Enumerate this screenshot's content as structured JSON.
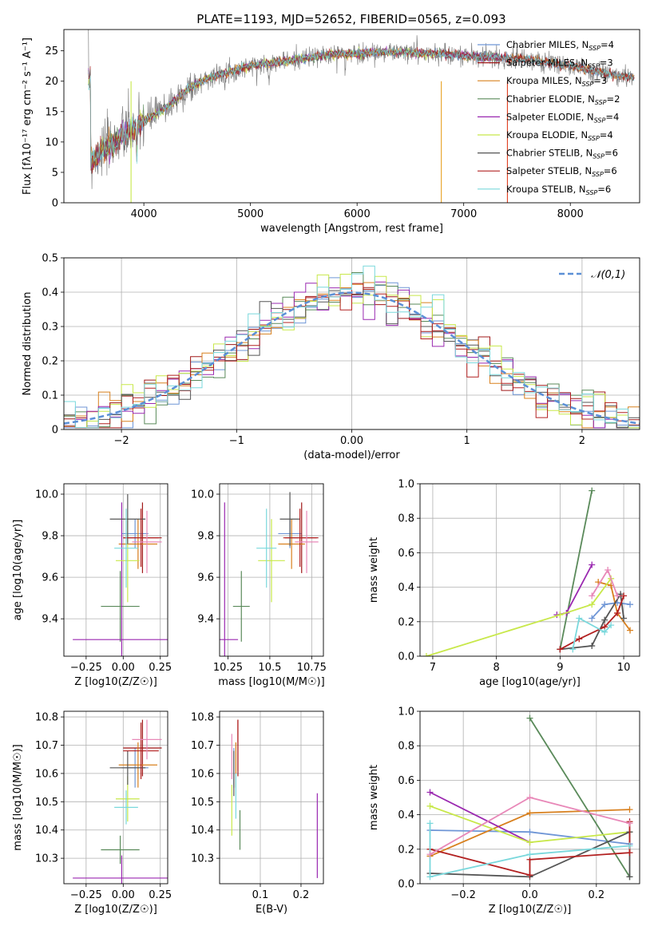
{
  "title": "PLATE=1193, MJD=52652, FIBERID=0565, z=0.093",
  "colors": {
    "grid": "#b0b0b0",
    "normal_curve": "#5b8fd6",
    "series": [
      "#6f96d6",
      "#a01818",
      "#d8801e",
      "#5a8a5a",
      "#9a28b0",
      "#c8e84a",
      "#555555",
      "#b22020",
      "#7ad8dc"
    ],
    "extra": [
      "#e888b8",
      "#e04020",
      "#e8a020"
    ]
  },
  "legend": [
    {
      "label": "Chabrier MILES, N",
      "sub": "SSP",
      "suffix": "=4"
    },
    {
      "label": "Salpeter MILES, N",
      "sub": "SSP",
      "suffix": "=3"
    },
    {
      "label": "Kroupa MILES, N",
      "sub": "SSP",
      "suffix": "=3"
    },
    {
      "label": "Chabrier ELODIE, N",
      "sub": "SSP",
      "suffix": "=2"
    },
    {
      "label": "Salpeter ELODIE, N",
      "sub": "SSP",
      "suffix": "=4"
    },
    {
      "label": "Kroupa ELODIE, N",
      "sub": "SSP",
      "suffix": "=4"
    },
    {
      "label": "Chabrier STELIB, N",
      "sub": "SSP",
      "suffix": "=6"
    },
    {
      "label": "Salpeter STELIB, N",
      "sub": "SSP",
      "suffix": "=6"
    },
    {
      "label": "Kroupa STELIB, N",
      "sub": "SSP",
      "suffix": "=6"
    }
  ],
  "chart_data": [
    {
      "id": "spectrum",
      "type": "line",
      "title": "PLATE=1193, MJD=52652, FIBERID=0565, z=0.093",
      "xlabel": "wavelength [Angstrom, rest frame]",
      "ylabel": "Flux [fλ10⁻¹⁷ erg cm⁻² s⁻¹ A⁻¹]",
      "xlim": [
        3250,
        8650
      ],
      "ylim": [
        0,
        28.5
      ],
      "xticks": [
        4000,
        5000,
        6000,
        7000,
        8000
      ],
      "yticks": [
        0,
        5,
        10,
        15,
        20,
        25
      ],
      "grid": false,
      "legend_position": "top-right",
      "continuum": {
        "x": [
          3500,
          3600,
          3700,
          3800,
          3900,
          4000,
          4100,
          4200,
          4300,
          4400,
          4500,
          4600,
          4800,
          5000,
          5200,
          5400,
          5600,
          5800,
          6000,
          6200,
          6400,
          6600,
          6800,
          7000,
          7200,
          7400,
          7600,
          7800,
          8000,
          8200,
          8400,
          8600
        ],
        "y": [
          6.5,
          8.5,
          9.5,
          11.0,
          12.0,
          13.5,
          14.5,
          15.5,
          17.0,
          18.5,
          19.5,
          20.5,
          21.5,
          22.5,
          23.0,
          23.5,
          24.0,
          24.5,
          24.5,
          24.8,
          24.8,
          24.6,
          24.5,
          24.2,
          24.0,
          23.8,
          23.6,
          23.0,
          22.5,
          21.8,
          21.0,
          20.5
        ]
      }
    },
    {
      "id": "residuals",
      "type": "histogram",
      "xlabel": "(data-model)/error",
      "ylabel": "Normed distribution",
      "xlim": [
        -2.5,
        2.5
      ],
      "ylim": [
        0,
        0.5
      ],
      "xticks": [
        -2,
        -1,
        0,
        1,
        2
      ],
      "yticks": [
        0.0,
        0.1,
        0.2,
        0.3,
        0.4,
        0.5
      ],
      "grid": true,
      "legend": "𝒩(0,1)",
      "legend_position": "top-right",
      "bin_width": 0.1,
      "bin_start": -2.5
    },
    {
      "id": "age_vs_Z",
      "type": "scatter",
      "xlabel": "Z [log10(Z/Z☉)]",
      "ylabel": "age  [log10(age/yr)]",
      "xlim": [
        -0.4,
        0.3
      ],
      "ylim": [
        9.22,
        10.05
      ],
      "xticks": [
        -0.25,
        0.0,
        0.25
      ],
      "yticks": [
        9.4,
        9.6,
        9.8,
        10.0
      ],
      "grid": true,
      "points": [
        {
          "x": 0.08,
          "y": 9.81,
          "xerr": 0.09,
          "yerr": 0.07,
          "color": "#6f96d6"
        },
        {
          "x": 0.13,
          "y": 9.79,
          "xerr": 0.13,
          "yerr": 0.17,
          "color": "#a01818"
        },
        {
          "x": 0.1,
          "y": 9.76,
          "xerr": 0.13,
          "yerr": 0.12,
          "color": "#d8801e"
        },
        {
          "x": -0.02,
          "y": 9.46,
          "xerr": 0.13,
          "yerr": 0.17,
          "color": "#5a8a5a"
        },
        {
          "x": -0.01,
          "y": 9.3,
          "xerr": 0.33,
          "yerr": 0.66,
          "color": "#9a28b0"
        },
        {
          "x": 0.03,
          "y": 9.68,
          "xerr": 0.08,
          "yerr": 0.2,
          "color": "#c8e84a"
        },
        {
          "x": 0.03,
          "y": 9.88,
          "xerr": 0.12,
          "yerr": 0.12,
          "color": "#555555"
        },
        {
          "x": 0.12,
          "y": 9.79,
          "xerr": 0.12,
          "yerr": 0.14,
          "color": "#b22020"
        },
        {
          "x": 0.02,
          "y": 9.74,
          "xerr": 0.08,
          "yerr": 0.19,
          "color": "#7ad8dc"
        },
        {
          "x": 0.16,
          "y": 9.77,
          "xerr": 0.1,
          "yerr": 0.15,
          "color": "#e888b8"
        }
      ]
    },
    {
      "id": "age_vs_mass",
      "type": "scatter",
      "xlabel": "mass [log10(M/M☉)]",
      "ylabel": "",
      "xlim": [
        10.2,
        10.82
      ],
      "ylim": [
        9.22,
        10.05
      ],
      "xticks": [
        10.25,
        10.5,
        10.75
      ],
      "yticks": [
        9.4,
        9.6,
        9.8,
        10.0
      ],
      "grid": true,
      "points": [
        {
          "x": 10.62,
          "y": 9.81,
          "xerr": 0.07,
          "yerr": 0.07,
          "color": "#6f96d6"
        },
        {
          "x": 10.69,
          "y": 9.79,
          "xerr": 0.1,
          "yerr": 0.17,
          "color": "#a01818"
        },
        {
          "x": 10.63,
          "y": 9.76,
          "xerr": 0.08,
          "yerr": 0.12,
          "color": "#d8801e"
        },
        {
          "x": 10.33,
          "y": 9.46,
          "xerr": 0.05,
          "yerr": 0.17,
          "color": "#5a8a5a"
        },
        {
          "x": 10.23,
          "y": 9.3,
          "xerr": 0.08,
          "yerr": 0.66,
          "color": "#9a28b0"
        },
        {
          "x": 10.51,
          "y": 9.68,
          "xerr": 0.08,
          "yerr": 0.2,
          "color": "#c8e84a"
        },
        {
          "x": 10.62,
          "y": 9.88,
          "xerr": 0.06,
          "yerr": 0.13,
          "color": "#555555"
        },
        {
          "x": 10.68,
          "y": 9.79,
          "xerr": 0.1,
          "yerr": 0.14,
          "color": "#b22020"
        },
        {
          "x": 10.48,
          "y": 9.74,
          "xerr": 0.06,
          "yerr": 0.19,
          "color": "#7ad8dc"
        },
        {
          "x": 10.72,
          "y": 9.77,
          "xerr": 0.07,
          "yerr": 0.15,
          "color": "#e888b8"
        }
      ]
    },
    {
      "id": "weight_vs_age",
      "type": "line",
      "xlabel": "age  [log10(age/yr)]",
      "ylabel": "mass weight",
      "xlim": [
        6.8,
        10.25
      ],
      "ylim": [
        0,
        1
      ],
      "xticks": [
        7,
        8,
        9,
        10
      ],
      "yticks": [
        0.0,
        0.2,
        0.4,
        0.6,
        0.8,
        1.0
      ],
      "grid": true,
      "series": [
        {
          "color": "#6f96d6",
          "x": [
            9.5,
            9.7,
            9.9,
            10.1
          ],
          "y": [
            0.22,
            0.3,
            0.31,
            0.3
          ]
        },
        {
          "color": "#d8801e",
          "x": [
            9.6,
            9.8,
            9.9,
            10.1
          ],
          "y": [
            0.43,
            0.41,
            0.25,
            0.15
          ]
        },
        {
          "color": "#5a8a5a",
          "x": [
            9.0,
            9.5
          ],
          "y": [
            0.04,
            0.96
          ]
        },
        {
          "color": "#9a28b0",
          "x": [
            8.95,
            9.1,
            9.5
          ],
          "y": [
            0.24,
            0.25,
            0.53
          ]
        },
        {
          "color": "#c8e84a",
          "x": [
            6.9,
            9.0,
            9.5,
            9.8
          ],
          "y": [
            0.0,
            0.24,
            0.3,
            0.45
          ]
        },
        {
          "color": "#555555",
          "x": [
            9.0,
            9.5,
            9.7,
            9.95,
            10.0
          ],
          "y": [
            0.04,
            0.06,
            0.21,
            0.36,
            0.22
          ]
        },
        {
          "color": "#b22020",
          "x": [
            9.0,
            9.3,
            9.7,
            9.9,
            10.0
          ],
          "y": [
            0.04,
            0.1,
            0.17,
            0.25,
            0.35
          ]
        },
        {
          "color": "#7ad8dc",
          "x": [
            9.2,
            9.3,
            9.7,
            9.8
          ],
          "y": [
            0.04,
            0.22,
            0.14,
            0.18
          ]
        },
        {
          "color": "#e888b8",
          "x": [
            9.5,
            9.75,
            9.9
          ],
          "y": [
            0.35,
            0.5,
            0.35
          ]
        }
      ]
    },
    {
      "id": "mass_vs_Z",
      "type": "scatter",
      "xlabel": "Z [log10(Z/Z☉)]",
      "ylabel": "mass [log10(M/M☉)]",
      "xlim": [
        -0.4,
        0.3
      ],
      "ylim": [
        10.21,
        10.82
      ],
      "xticks": [
        -0.25,
        0.0,
        0.25
      ],
      "yticks": [
        10.3,
        10.4,
        10.5,
        10.6,
        10.7,
        10.8
      ],
      "grid": true,
      "points": [
        {
          "x": 0.08,
          "y": 10.62,
          "xerr": 0.09,
          "yerr": 0.07,
          "color": "#6f96d6"
        },
        {
          "x": 0.13,
          "y": 10.69,
          "xerr": 0.13,
          "yerr": 0.1,
          "color": "#a01818"
        },
        {
          "x": 0.1,
          "y": 10.63,
          "xerr": 0.13,
          "yerr": 0.08,
          "color": "#d8801e"
        },
        {
          "x": -0.02,
          "y": 10.33,
          "xerr": 0.13,
          "yerr": 0.05,
          "color": "#5a8a5a"
        },
        {
          "x": -0.01,
          "y": 10.23,
          "xerr": 0.33,
          "yerr": 0.08,
          "color": "#9a28b0"
        },
        {
          "x": 0.03,
          "y": 10.51,
          "xerr": 0.08,
          "yerr": 0.08,
          "color": "#c8e84a"
        },
        {
          "x": 0.03,
          "y": 10.62,
          "xerr": 0.12,
          "yerr": 0.06,
          "color": "#555555"
        },
        {
          "x": 0.12,
          "y": 10.68,
          "xerr": 0.12,
          "yerr": 0.1,
          "color": "#b22020"
        },
        {
          "x": 0.02,
          "y": 10.48,
          "xerr": 0.08,
          "yerr": 0.06,
          "color": "#7ad8dc"
        },
        {
          "x": 0.16,
          "y": 10.72,
          "xerr": 0.1,
          "yerr": 0.07,
          "color": "#e888b8"
        }
      ]
    },
    {
      "id": "mass_vs_ebv",
      "type": "scatter",
      "xlabel": "E(B-V)",
      "ylabel": "",
      "xlim": [
        0.0,
        0.255
      ],
      "ylim": [
        10.21,
        10.82
      ],
      "xticks": [
        0.1,
        0.2
      ],
      "yticks": [
        10.3,
        10.4,
        10.5,
        10.6,
        10.7,
        10.8
      ],
      "grid": true,
      "points": [
        {
          "x": 0.035,
          "y": 10.62,
          "yerr": 0.07,
          "color": "#6f96d6"
        },
        {
          "x": 0.045,
          "y": 10.69,
          "yerr": 0.1,
          "color": "#a01818"
        },
        {
          "x": 0.04,
          "y": 10.63,
          "yerr": 0.08,
          "color": "#d8801e"
        },
        {
          "x": 0.05,
          "y": 10.4,
          "yerr": 0.07,
          "color": "#5a8a5a"
        },
        {
          "x": 0.24,
          "y": 10.38,
          "yerr": 0.15,
          "color": "#9a28b0"
        },
        {
          "x": 0.03,
          "y": 10.47,
          "yerr": 0.09,
          "color": "#c8e84a"
        },
        {
          "x": 0.035,
          "y": 10.6,
          "yerr": 0.08,
          "color": "#555555"
        },
        {
          "x": 0.045,
          "y": 10.7,
          "yerr": 0.09,
          "color": "#b22020"
        },
        {
          "x": 0.04,
          "y": 10.52,
          "yerr": 0.08,
          "color": "#7ad8dc"
        },
        {
          "x": 0.03,
          "y": 10.66,
          "yerr": 0.08,
          "color": "#e888b8"
        }
      ]
    },
    {
      "id": "weight_vs_Z",
      "type": "line",
      "xlabel": "Z [log10(Z/Z☉)]",
      "ylabel": "mass weight",
      "xlim": [
        -0.33,
        0.33
      ],
      "ylim": [
        0,
        1
      ],
      "xticks": [
        -0.2,
        0.0,
        0.2
      ],
      "yticks": [
        0.0,
        0.2,
        0.4,
        0.6,
        0.8,
        1.0
      ],
      "grid": true,
      "series": [
        {
          "color": "#6f96d6",
          "x": [
            -0.3,
            0.0,
            0.3
          ],
          "y": [
            0.31,
            0.3,
            0.23
          ]
        },
        {
          "color": "#d8801e",
          "x": [
            -0.3,
            0.0,
            0.3
          ],
          "y": [
            0.16,
            0.41,
            0.43
          ]
        },
        {
          "color": "#5a8a5a",
          "x": [
            0.0,
            0.3
          ],
          "y": [
            0.96,
            0.04
          ]
        },
        {
          "color": "#9a28b0",
          "x": [
            -0.3,
            0.0
          ],
          "y": [
            0.53,
            0.24
          ]
        },
        {
          "color": "#c8e84a",
          "x": [
            -0.3,
            0.0,
            0.3
          ],
          "y": [
            0.45,
            0.24,
            0.3
          ]
        },
        {
          "color": "#555555",
          "x": [
            -0.3,
            0.0,
            0.3,
            0.3
          ],
          "y": [
            0.06,
            0.04,
            0.3,
            0.04
          ]
        },
        {
          "color": "#b22020",
          "x": [
            -0.3,
            0.0,
            0.0,
            0.3,
            0.3
          ],
          "y": [
            0.2,
            0.05,
            0.14,
            0.18,
            0.36
          ]
        },
        {
          "color": "#7ad8dc",
          "x": [
            -0.3,
            -0.3,
            0.0,
            0.3
          ],
          "y": [
            0.35,
            0.04,
            0.17,
            0.22
          ]
        },
        {
          "color": "#e888b8",
          "x": [
            -0.3,
            0.0,
            0.3
          ],
          "y": [
            0.17,
            0.5,
            0.35
          ]
        }
      ]
    }
  ]
}
